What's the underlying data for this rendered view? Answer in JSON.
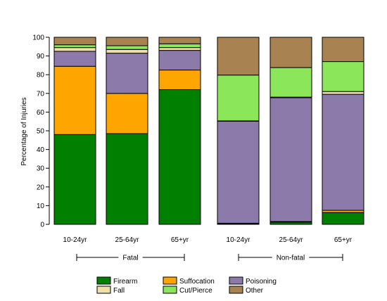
{
  "chart_data": {
    "type": "bar",
    "stacked": true,
    "title": "",
    "ylabel": "Percentage of Injuries",
    "ylim": [
      0,
      100
    ],
    "yticks": [
      0,
      10,
      20,
      30,
      40,
      50,
      60,
      70,
      80,
      90,
      100
    ],
    "grid": false,
    "legend_position": "bottom",
    "categories": [
      "10-24yr",
      "25-64yr",
      "65+yr",
      "10-24yr",
      "25-64yr",
      "65+yr"
    ],
    "groups": [
      {
        "label": "Fatal",
        "categories": [
          0,
          1,
          2
        ]
      },
      {
        "label": "Non-fatal",
        "categories": [
          3,
          4,
          5
        ]
      }
    ],
    "series": [
      {
        "name": "Firearm",
        "color": "#007f00",
        "values": [
          48,
          48.5,
          72,
          0.3,
          1.2,
          6.3
        ]
      },
      {
        "name": "Suffocation",
        "color": "#ffa500",
        "values": [
          36.5,
          21.5,
          10.5,
          0.3,
          0.3,
          1.2
        ]
      },
      {
        "name": "Poisoning",
        "color": "#8b7aaa",
        "values": [
          8,
          21.5,
          10.5,
          54.5,
          66.2,
          62
        ]
      },
      {
        "name": "Fall",
        "color": "#efe0a8",
        "values": [
          2,
          2,
          1.5,
          0.2,
          0.3,
          1.5
        ]
      },
      {
        "name": "Cut/Pierce",
        "color": "#8ce65a",
        "values": [
          1.5,
          2,
          2,
          24.5,
          15.8,
          16
        ]
      },
      {
        "name": "Other",
        "color": "#a98252",
        "values": [
          4,
          4.5,
          3.5,
          20.2,
          16.2,
          13
        ]
      }
    ],
    "legend_order": [
      "Firearm",
      "Suffocation",
      "Poisoning",
      "Fall",
      "Cut/Pierce",
      "Other"
    ]
  }
}
